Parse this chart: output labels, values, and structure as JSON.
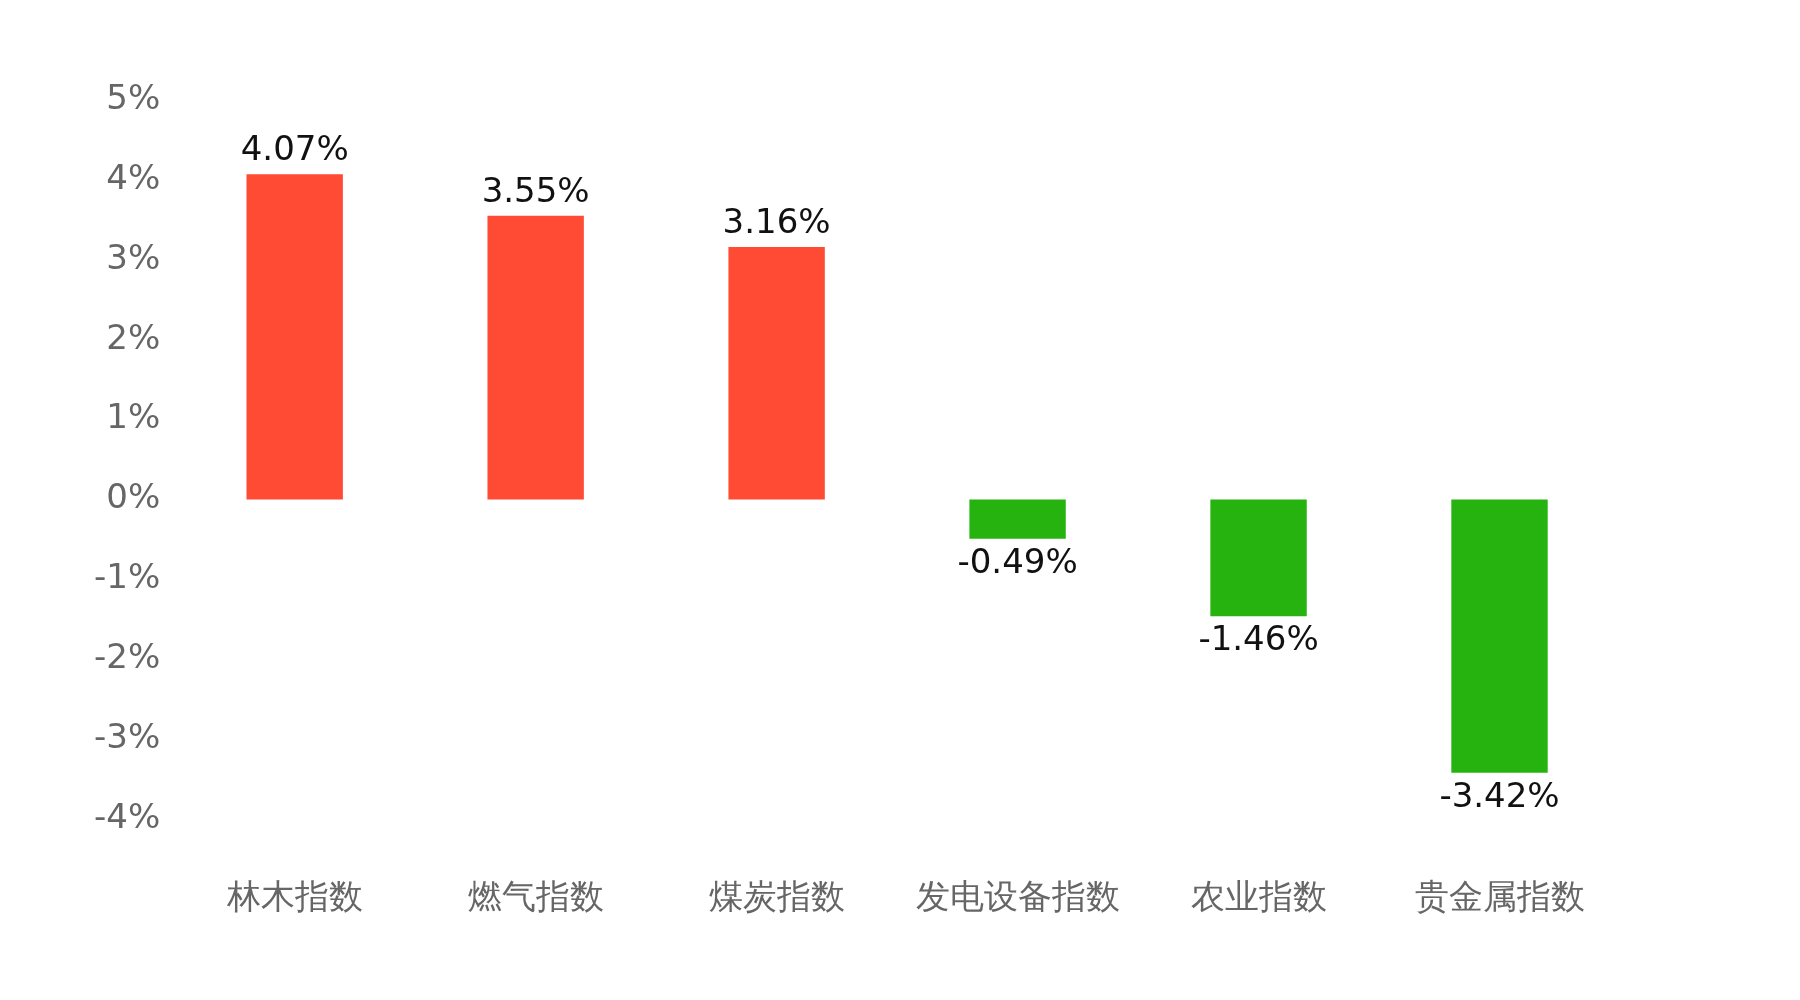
{
  "chart_data": {
    "type": "bar",
    "categories": [
      "林木指数",
      "燃气指数",
      "煤炭指数",
      "发电设备指数",
      "农业指数",
      "贵金属指数"
    ],
    "values": [
      4.07,
      3.55,
      3.16,
      -0.49,
      -1.46,
      -3.42
    ],
    "colors": [
      "#ff4b33",
      "#ff4b33",
      "#ff4b33",
      "#27b30f",
      "#27b30f",
      "#27b30f"
    ],
    "value_labels": [
      "4.07%",
      "3.55%",
      "3.16%",
      "-0.49%",
      "-1.46%",
      "-3.42%"
    ],
    "ylim": [
      -4,
      5
    ],
    "yticks": [
      {
        "value": -4,
        "label": "-4%"
      },
      {
        "value": -3,
        "label": "-3%"
      },
      {
        "value": -2,
        "label": "-2%"
      },
      {
        "value": -1,
        "label": "-1%"
      },
      {
        "value": 0,
        "label": "0%"
      },
      {
        "value": 1,
        "label": "1%"
      },
      {
        "value": 2,
        "label": "2%"
      },
      {
        "value": 3,
        "label": "3%"
      },
      {
        "value": 4,
        "label": "4%"
      },
      {
        "value": 5,
        "label": "5%"
      }
    ],
    "grid": false,
    "legend": false
  }
}
